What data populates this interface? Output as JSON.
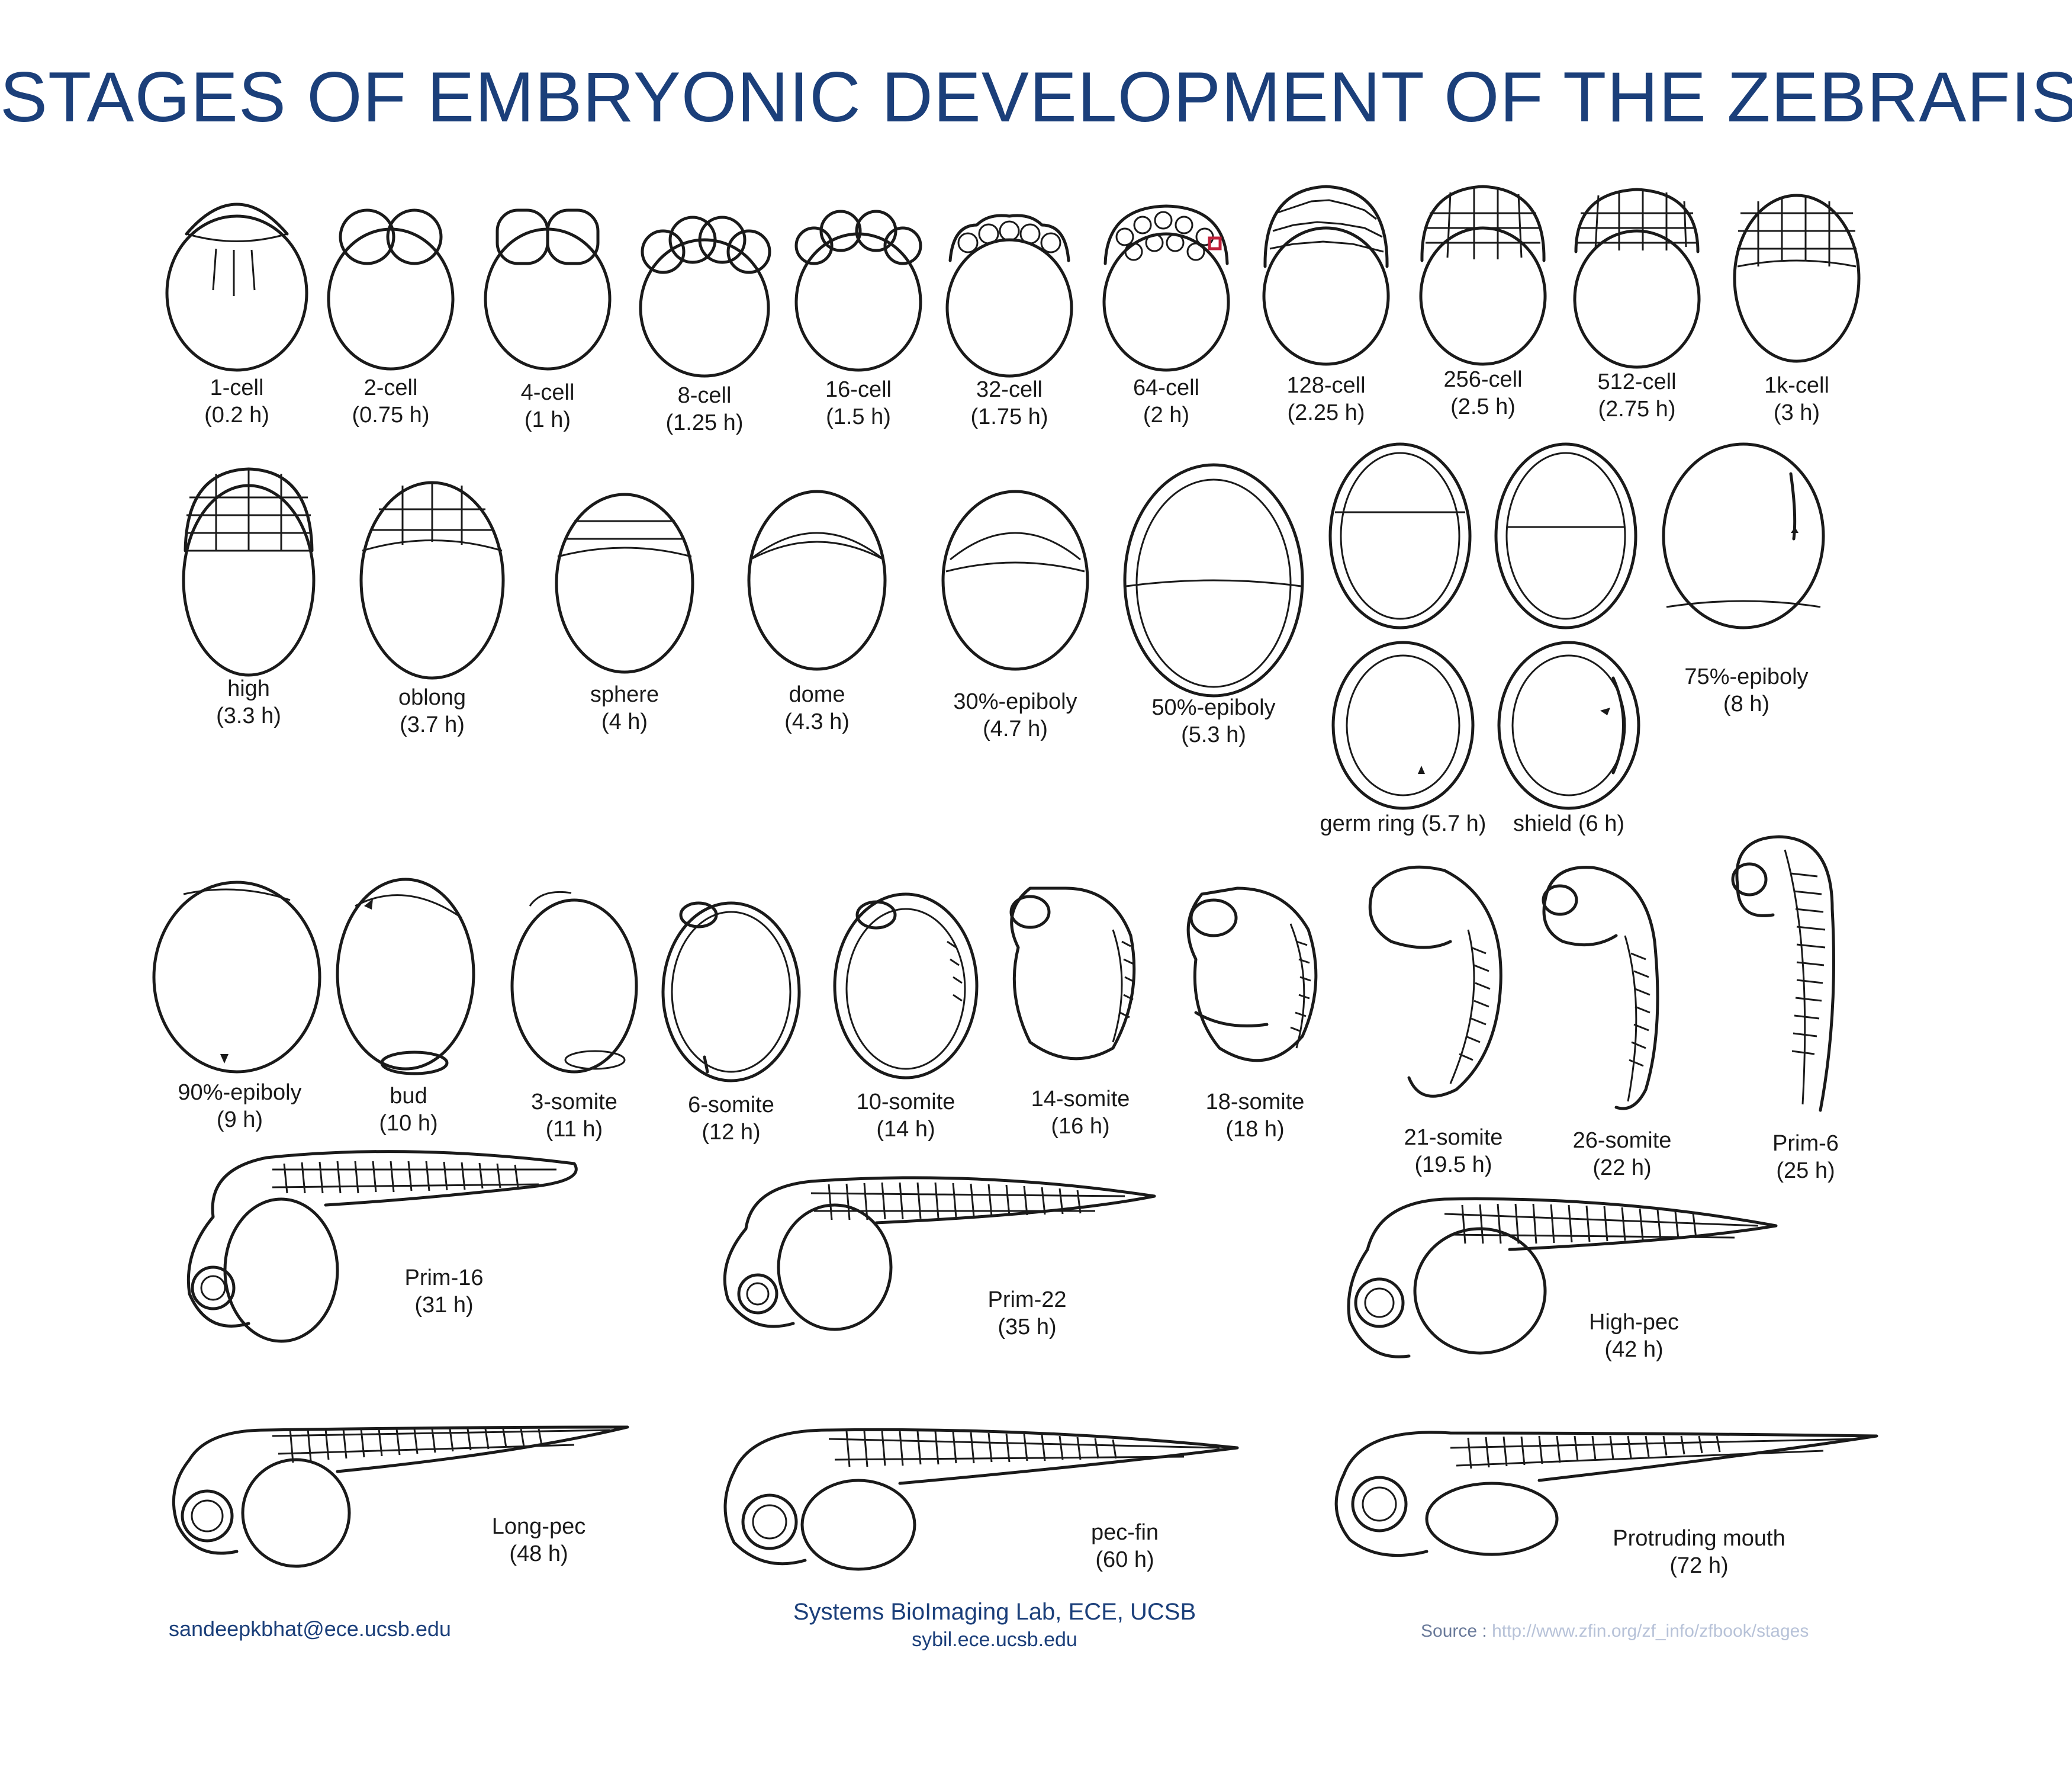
{
  "title": "STAGES OF EMBRYONIC DEVELOPMENT OF THE ZEBRAFISH",
  "colors": {
    "title": "#1b3f7a",
    "ink": "#1a1a1a",
    "marker": "#c0203a"
  },
  "stages": {
    "s1": {
      "name": "1-cell",
      "time": "(0.2 h)"
    },
    "s2": {
      "name": "2-cell",
      "time": "(0.75 h)"
    },
    "s3": {
      "name": "4-cell",
      "time": "(1 h)"
    },
    "s4": {
      "name": "8-cell",
      "time": "(1.25 h)"
    },
    "s5": {
      "name": "16-cell",
      "time": "(1.5 h)"
    },
    "s6": {
      "name": "32-cell",
      "time": "(1.75 h)"
    },
    "s7": {
      "name": "64-cell",
      "time": "(2 h)"
    },
    "s8": {
      "name": "128-cell",
      "time": "(2.25 h)"
    },
    "s9": {
      "name": "256-cell",
      "time": "(2.5 h)"
    },
    "s10": {
      "name": "512-cell",
      "time": "(2.75 h)"
    },
    "s11": {
      "name": "1k-cell",
      "time": "(3 h)"
    },
    "s12": {
      "name": "high",
      "time": "(3.3 h)"
    },
    "s13": {
      "name": "oblong",
      "time": "(3.7 h)"
    },
    "s14": {
      "name": "sphere",
      "time": "(4 h)"
    },
    "s15": {
      "name": "dome",
      "time": "(4.3 h)"
    },
    "s16": {
      "name": "30%-epiboly",
      "time": "(4.7 h)"
    },
    "s17": {
      "name": "50%-epiboly",
      "time": "(5.3 h)"
    },
    "s18": {
      "name": "germ ring (5.7 h)"
    },
    "s19": {
      "name": "shield (6 h)"
    },
    "s20": {
      "name": "75%-epiboly",
      "time": "(8 h)"
    },
    "s21": {
      "name": "90%-epiboly",
      "time": "(9 h)"
    },
    "s22": {
      "name": "bud",
      "time": "(10 h)"
    },
    "s23": {
      "name": "3-somite",
      "time": "(11 h)"
    },
    "s24": {
      "name": "6-somite",
      "time": "(12 h)"
    },
    "s25": {
      "name": "10-somite",
      "time": "(14 h)"
    },
    "s26": {
      "name": "14-somite",
      "time": "(16 h)"
    },
    "s27": {
      "name": "18-somite",
      "time": "(18 h)"
    },
    "s28": {
      "name": "21-somite",
      "time": "(19.5 h)"
    },
    "s29": {
      "name": "26-somite",
      "time": "(22 h)"
    },
    "s30": {
      "name": "Prim-6",
      "time": "(25 h)"
    },
    "s31": {
      "name": "Prim-16",
      "time": "(31 h)"
    },
    "s32": {
      "name": "Prim-22",
      "time": "(35 h)"
    },
    "s33": {
      "name": "High-pec",
      "time": "(42 h)"
    },
    "s34": {
      "name": "Long-pec",
      "time": "(48 h)"
    },
    "s35": {
      "name": "pec-fin",
      "time": "(60 h)"
    },
    "s36": {
      "name": "Protruding mouth",
      "time": "(72 h)"
    }
  },
  "footer": {
    "email": "sandeepkbhat@ece.ucsb.edu",
    "lab_name": "Systems BioImaging Lab, ECE, UCSB",
    "lab_site": "sybil.ece.ucsb.edu",
    "source_label": "Source :",
    "source_url": "http://www.zfin.org/zf_info/zfbook/stages"
  }
}
